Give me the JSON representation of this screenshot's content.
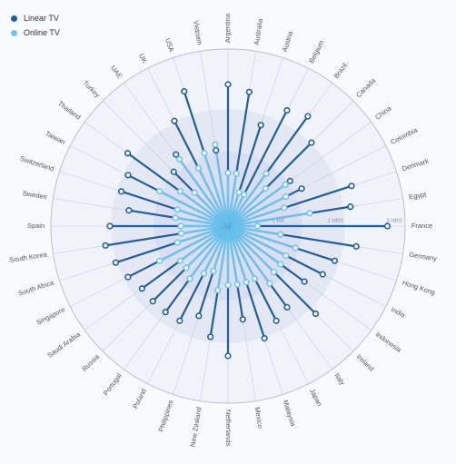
{
  "chart_data": {
    "type": "radial-lollipop",
    "unit": "HRS",
    "rlim": [
      0,
      3
    ],
    "ring_labels": [
      {
        "value": 1,
        "label": "1 HR"
      },
      {
        "value": 2,
        "label": "2 HRS"
      },
      {
        "value": 3,
        "label": "3 HRS"
      }
    ],
    "legend": {
      "placement": "top-left"
    },
    "series": [
      {
        "name": "Linear TV",
        "color": "#1f5fa0"
      },
      {
        "name": "Online TV",
        "color": "#6cc4ef"
      }
    ],
    "categories": [
      "Argentina",
      "Australia",
      "Austria",
      "Belgium",
      "Brazil",
      "Canada",
      "China",
      "Colombia",
      "Denmark",
      "Egypt",
      "France",
      "Germany",
      "Hong Kong",
      "India",
      "Indonesia",
      "Ireland",
      "Italy",
      "Japan",
      "Malaysia",
      "Mexico",
      "Netherlands",
      "New Zealand",
      "Philippines",
      "Poland",
      "Portugal",
      "Russia",
      "Saudi Arabia",
      "Singapore",
      "South Africa",
      "South Korea",
      "Spain",
      "Sweden",
      "Switzerland",
      "Taiwan",
      "Thailand",
      "Turkey",
      "UAE",
      "UK",
      "USA",
      "Vietnam"
    ],
    "linear_tv": [
      2.4,
      2.3,
      1.8,
      2.2,
      2.3,
      2.0,
      1.3,
      1.4,
      2.2,
      2.1,
      2.7,
      2.2,
      1.9,
      1.8,
      1.6,
      2.1,
      1.7,
      1.8,
      2.0,
      1.6,
      2.2,
      1.9,
      1.6,
      1.8,
      1.8,
      1.8,
      1.8,
      1.9,
      2.0,
      2.1,
      2.0,
      1.7,
      1.9,
      1.9,
      2.1,
      1.3,
      1.5,
      2.0,
      2.4,
      1.3
    ],
    "online_tv": [
      0.9,
      0.9,
      0.6,
      0.6,
      1.1,
      0.9,
      1.2,
      1.1,
      1.0,
      1.4,
      0.5,
      0.9,
      1.2,
      1.1,
      1.1,
      1.1,
      1.2,
      1.0,
      1.0,
      1.0,
      1.0,
      1.1,
      0.8,
      0.9,
      1.1,
      1.0,
      1.0,
      1.3,
      0.9,
      0.8,
      0.8,
      0.9,
      0.9,
      1.3,
      1.0,
      0.8,
      1.4,
      1.1,
      1.3,
      1.4
    ]
  }
}
